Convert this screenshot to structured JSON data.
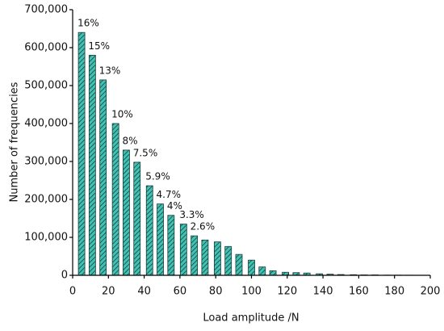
{
  "chart_data": {
    "type": "bar",
    "xlabel": "Load amplitude /N",
    "ylabel": "Number of frequencies",
    "color": "#3fc3b4",
    "x": [
      5,
      11,
      17,
      24,
      30,
      36,
      43,
      49,
      55,
      62,
      68,
      74,
      81,
      87,
      93,
      100,
      106,
      112,
      119,
      125,
      131,
      138,
      144,
      150,
      157,
      163,
      169,
      176,
      182,
      188,
      195
    ],
    "values": [
      640000,
      580000,
      515000,
      400000,
      330000,
      298000,
      236000,
      188000,
      158000,
      135000,
      104000,
      93000,
      88000,
      76000,
      55000,
      40000,
      22000,
      12000,
      8000,
      7000,
      6000,
      4000,
      3000,
      2000,
      1500,
      1000,
      1000,
      500,
      500,
      300,
      200
    ],
    "annotations": [
      "16%",
      "15%",
      "13%",
      "10%",
      "8%",
      "7.5%",
      "5.9%",
      "4.7%",
      "4%",
      "3.3%",
      "2.6%"
    ],
    "xlim": [
      0,
      200
    ],
    "xticks": [
      0,
      20,
      40,
      60,
      80,
      100,
      120,
      140,
      160,
      180,
      200
    ],
    "ylim": [
      0,
      700000
    ],
    "yticks": [
      0,
      {
        "value": 100000,
        "label": "100,000"
      },
      {
        "value": 200000,
        "label": "200,000"
      },
      {
        "value": 300000,
        "label": "300,000"
      },
      {
        "value": 400000,
        "label": "400,000"
      },
      {
        "value": 500000,
        "label": "500,000"
      },
      {
        "value": 600000,
        "label": "600,000"
      },
      {
        "value": 700000,
        "label": "700,000"
      }
    ]
  }
}
